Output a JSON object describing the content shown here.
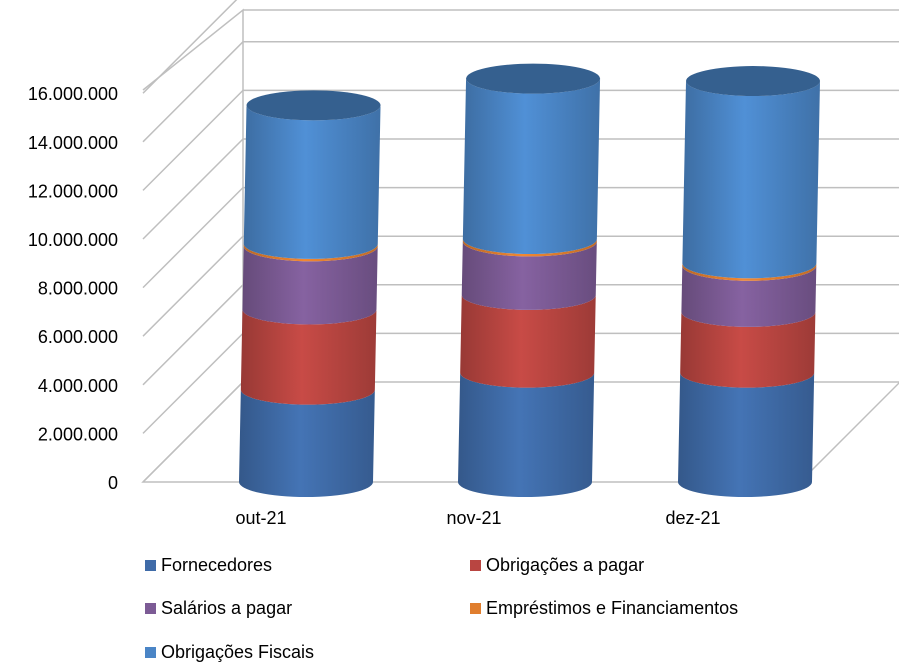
{
  "chart_data": {
    "type": "bar",
    "stacked": true,
    "three_d": true,
    "title": "",
    "xlabel": "",
    "ylabel": "",
    "ylim": [
      0,
      16000000
    ],
    "yticks": [
      0,
      2000000,
      4000000,
      6000000,
      8000000,
      10000000,
      12000000,
      14000000,
      16000000
    ],
    "ytick_labels": [
      "0",
      "2.000.000",
      "4.000.000",
      "6.000.000",
      "8.000.000",
      "10.000.000",
      "12.000.000",
      "14.000.000",
      "16.000.000"
    ],
    "grid": true,
    "legend_position": "bottom",
    "categories": [
      "out-21",
      "nov-21",
      "dez-21"
    ],
    "series": [
      {
        "name": "Fornecedores",
        "color": "#3F6BA8",
        "values": [
          3800000,
          4500000,
          4500000
        ]
      },
      {
        "name": "Obrigações a pagar",
        "color": "#B94541",
        "values": [
          3300000,
          3200000,
          2500000
        ]
      },
      {
        "name": "Salários a pagar",
        "color": "#7C5B95",
        "values": [
          2600000,
          2200000,
          1900000
        ]
      },
      {
        "name": "Empréstimos e Financiamentos",
        "color": "#E07E2E",
        "values": [
          100000,
          100000,
          100000
        ]
      },
      {
        "name": "Obrigações Fiscais",
        "color": "#4A85C6",
        "values": [
          5700000,
          6600000,
          7500000
        ]
      }
    ]
  }
}
